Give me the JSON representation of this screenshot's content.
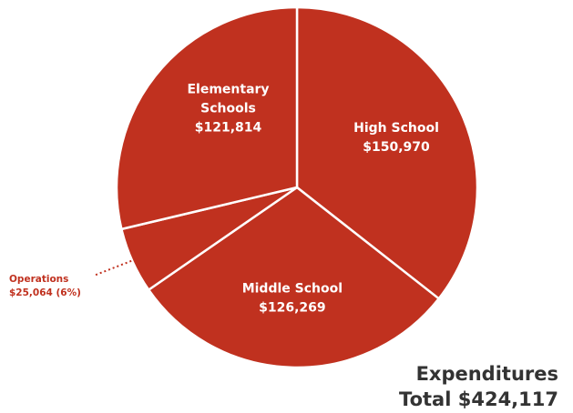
{
  "chart_data": {
    "type": "pie",
    "slices": [
      {
        "label_lines": [
          "High School",
          "$150,970"
        ],
        "value": 150970
      },
      {
        "label_lines": [
          "Middle School",
          "$126,269"
        ],
        "value": 126269
      },
      {
        "label_lines": [
          "Operations",
          "$25,064 (6%)"
        ],
        "value": 25064
      },
      {
        "label_lines": [
          "Elementary",
          "Schools",
          "$121,814"
        ],
        "value": 121814
      }
    ],
    "total_title": "Expenditures",
    "total_value": "Total $424,117",
    "colors": {
      "slice": "#c0311f",
      "separator": "#ffffff",
      "callout": "#c0311f",
      "total_text": "#333333"
    }
  }
}
